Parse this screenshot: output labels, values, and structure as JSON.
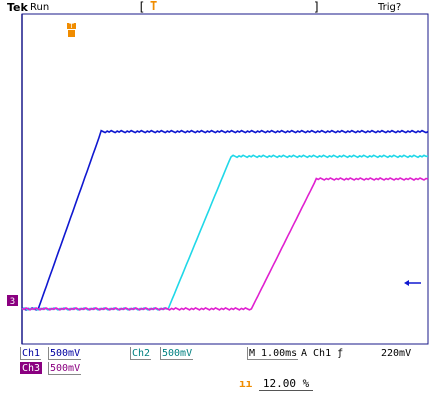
{
  "header": {
    "brand": "Tek",
    "run_state": "Run",
    "trigger_status": "Trig?",
    "left_bracket": "[",
    "right_bracket": "]",
    "trigger_marker": "T"
  },
  "colors": {
    "ch1": "#1018d0",
    "ch2": "#20d8e8",
    "ch3": "#e020d0",
    "trigger": "#f08c00",
    "grid_border": "#1a1a8a"
  },
  "chart_data": {
    "type": "line",
    "xlabel": "",
    "ylabel": "",
    "grid": false,
    "time_per_div_ms": 1.0,
    "xlim_div": [
      -5,
      5
    ],
    "ylim_div": [
      -4,
      4
    ],
    "series": [
      {
        "name": "Ch1",
        "color": "#1018d0",
        "points_div": [
          [
            -5,
            -3.15
          ],
          [
            -4.6,
            -3.15
          ],
          [
            -3.05,
            1.15
          ],
          [
            5,
            1.15
          ]
        ]
      },
      {
        "name": "Ch2",
        "color": "#20d8e8",
        "points_div": [
          [
            -5,
            -3.15
          ],
          [
            -1.4,
            -3.15
          ],
          [
            0.15,
            0.55
          ],
          [
            5,
            0.55
          ]
        ]
      },
      {
        "name": "Ch3",
        "color": "#e020d0",
        "points_div": [
          [
            -5,
            -3.15
          ],
          [
            0.65,
            -3.15
          ],
          [
            2.25,
            0.0
          ],
          [
            5,
            0.0
          ]
        ]
      }
    ]
  },
  "footer": {
    "ch1_label": "Ch1",
    "ch1_scale": "500mV",
    "ch2_label": "Ch2",
    "ch2_scale": "500mV",
    "time_scale": "M 1.00ms",
    "trigger_source": "A  Ch1  ƒ",
    "trigger_level": "220mV",
    "ch3_label": "Ch3",
    "ch3_scale": "500mV",
    "position_icon": "ıı",
    "position_value": "12.00 %",
    "ch_marker_3": "3"
  }
}
